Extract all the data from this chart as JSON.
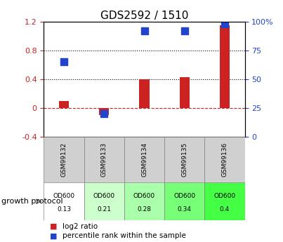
{
  "title": "GDS2592 / 1510",
  "samples": [
    "GSM99132",
    "GSM99133",
    "GSM99134",
    "GSM99135",
    "GSM99136"
  ],
  "log2_ratio": [
    0.1,
    -0.1,
    0.4,
    0.43,
    1.15
  ],
  "percentile_rank_pct": [
    65,
    20,
    92,
    92,
    98
  ],
  "left_ylim": [
    -0.4,
    1.2
  ],
  "right_ylim": [
    0,
    100
  ],
  "left_yticks": [
    -0.4,
    0.0,
    0.4,
    0.8,
    1.2
  ],
  "right_yticks": [
    0,
    25,
    50,
    75,
    100
  ],
  "left_ytick_labels": [
    "-0.4",
    "0",
    "0.4",
    "0.8",
    "1.2"
  ],
  "right_ytick_labels": [
    "0",
    "25",
    "50",
    "75",
    "100%"
  ],
  "hlines": [
    0.4,
    0.8
  ],
  "bar_color": "#cc2222",
  "dot_color": "#2244cc",
  "zero_line_color": "#cc2222",
  "growth_protocol_label": "growth protocol",
  "od_labels": [
    "OD600",
    "OD600",
    "OD600",
    "OD600",
    "OD600"
  ],
  "od_values": [
    "0.13",
    "0.21",
    "0.28",
    "0.34",
    "0.4"
  ],
  "od_colors": [
    "#ffffff",
    "#ccffcc",
    "#aaffaa",
    "#77ff77",
    "#44ff44"
  ],
  "legend_log2": "log2 ratio",
  "legend_pct": "percentile rank within the sample"
}
